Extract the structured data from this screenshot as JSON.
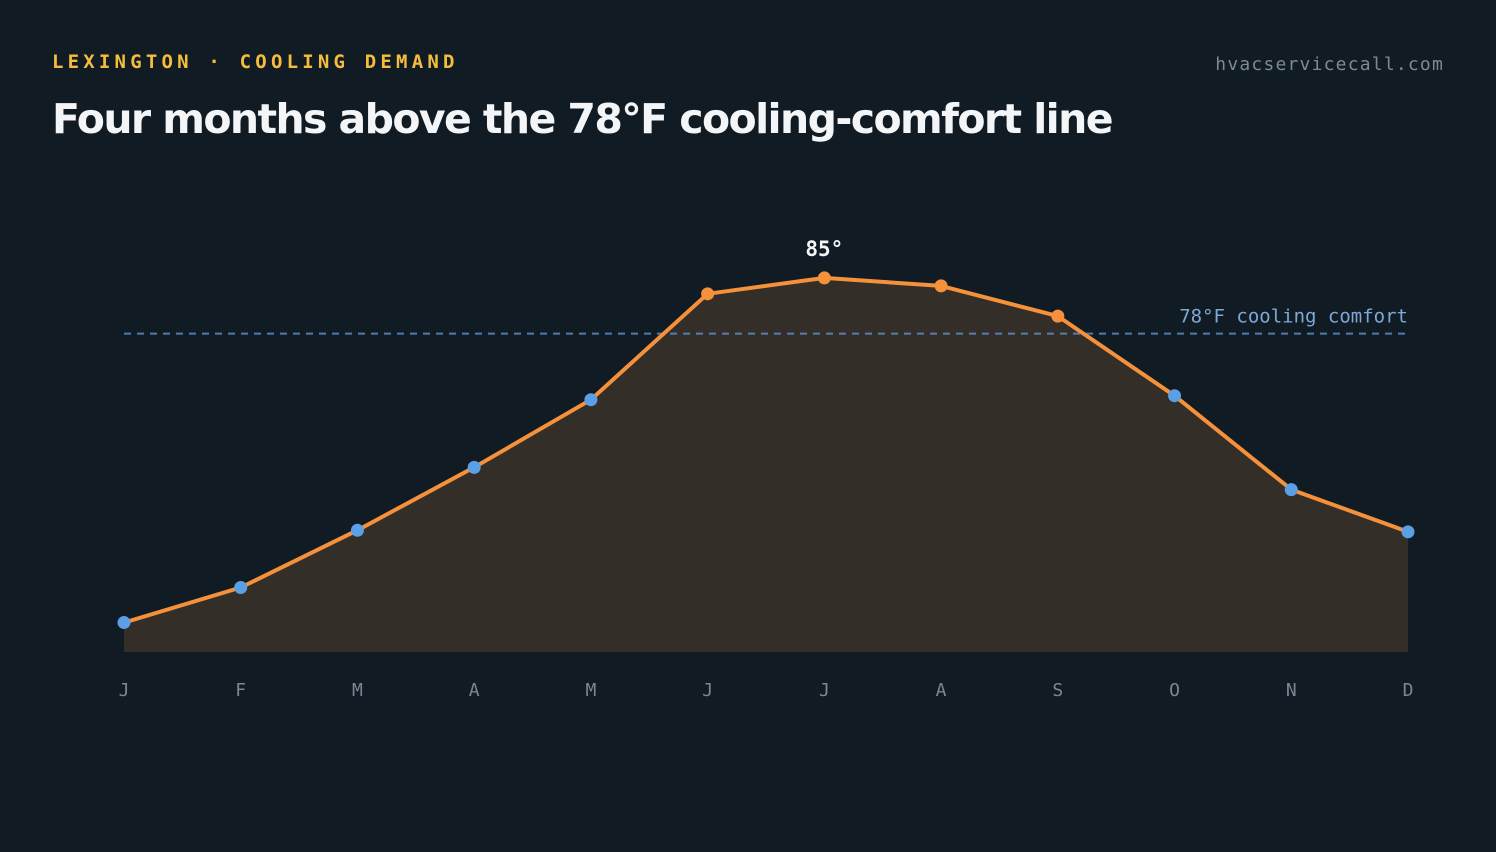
{
  "header": {
    "eyebrow": "LEXINGTON · COOLING DEMAND",
    "site": "hvacservicecall.com",
    "title": "Four months above the 78°F cooling-comfort line"
  },
  "colors": {
    "background": "#101b24",
    "line": "#f5913a",
    "fill": "#332e28",
    "below_point": "#5b9fe6",
    "above_point": "#f5913a",
    "reference": "#5b8cc8",
    "eyebrow": "#f5bd3c"
  },
  "chart_data": {
    "type": "area",
    "title": "Four months above the 78°F cooling-comfort line",
    "xlabel": "",
    "ylabel": "",
    "categories": [
      "J",
      "F",
      "M",
      "A",
      "M",
      "J",
      "J",
      "A",
      "S",
      "O",
      "N",
      "D"
    ],
    "series": [
      {
        "values": [
          41.7,
          46.1,
          53.3,
          61.2,
          69.7,
          83.0,
          85.0,
          84.0,
          80.2,
          70.2,
          58.4,
          53.1
        ]
      }
    ],
    "ylim": [
      38,
      87
    ],
    "reference_line": {
      "value": 78,
      "label": "78°F cooling comfort"
    },
    "peak_annotation": {
      "index": 6,
      "label": "85°"
    },
    "grid": false,
    "legend": "none"
  }
}
